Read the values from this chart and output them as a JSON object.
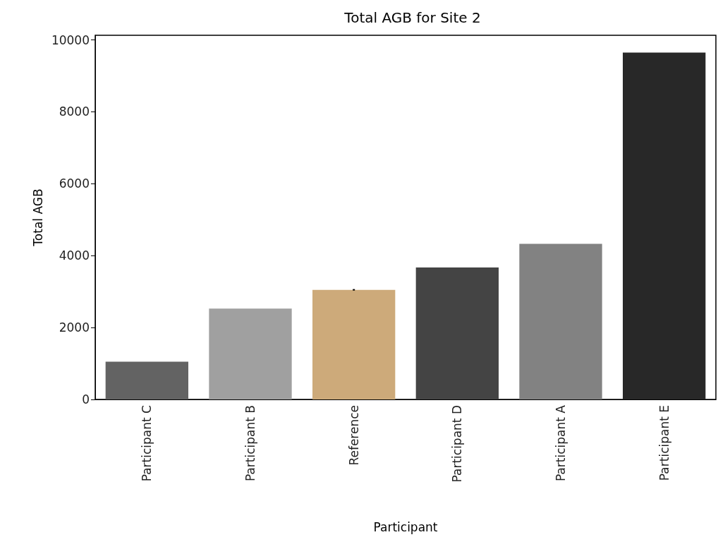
{
  "chart_data": {
    "type": "bar",
    "title": "Total AGB for Site 2",
    "xlabel": "Participant",
    "ylabel": "Total AGB",
    "categories": [
      "Participant C",
      "Participant B",
      "Reference",
      "Participant D",
      "Participant A",
      "Participant E"
    ],
    "values": [
      1050,
      2530,
      3050,
      3670,
      4330,
      9650
    ],
    "errors": [
      null,
      null,
      20,
      null,
      null,
      null
    ],
    "colors": [
      "#636363",
      "#a0a0a0",
      "#cdaa7a",
      "#444444",
      "#828282",
      "#282828"
    ],
    "ylim": [
      0,
      10130
    ],
    "yticks": [
      0,
      2000,
      4000,
      6000,
      8000,
      10000
    ],
    "grid": false
  }
}
